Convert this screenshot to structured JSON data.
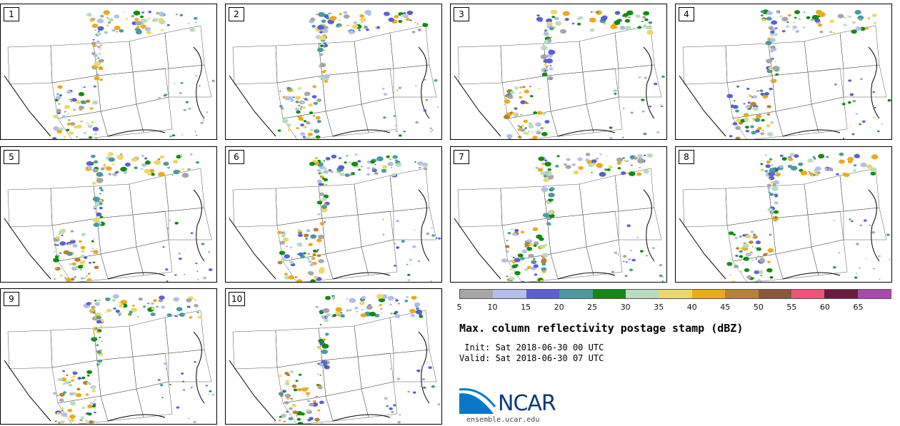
{
  "map": {
    "title": "Max. column reflectivity postage stamp (dBZ)",
    "init": " Init: Sat 2018-06-30 00 UTC",
    "valid": "Valid: Sat 2018-06-30 07 UTC",
    "logo_text": "NCAR",
    "site": "ensemble.ucar.edu",
    "panels": [
      "1",
      "2",
      "3",
      "4",
      "5",
      "6",
      "7",
      "8",
      "9",
      "10"
    ],
    "colorbar": {
      "labels": [
        "5",
        "10",
        "15",
        "20",
        "25",
        "30",
        "35",
        "40",
        "45",
        "50",
        "55",
        "60",
        "65"
      ],
      "colors": [
        "#a6a6a6",
        "#b3bfe8",
        "#5a5fd6",
        "#4a9aa0",
        "#138a13",
        "#b9ddbd",
        "#ecd867",
        "#ecaa1a",
        "#b78233",
        "#8b5839",
        "#f0527a",
        "#6e1a3f",
        "#a94aab"
      ]
    }
  }
}
